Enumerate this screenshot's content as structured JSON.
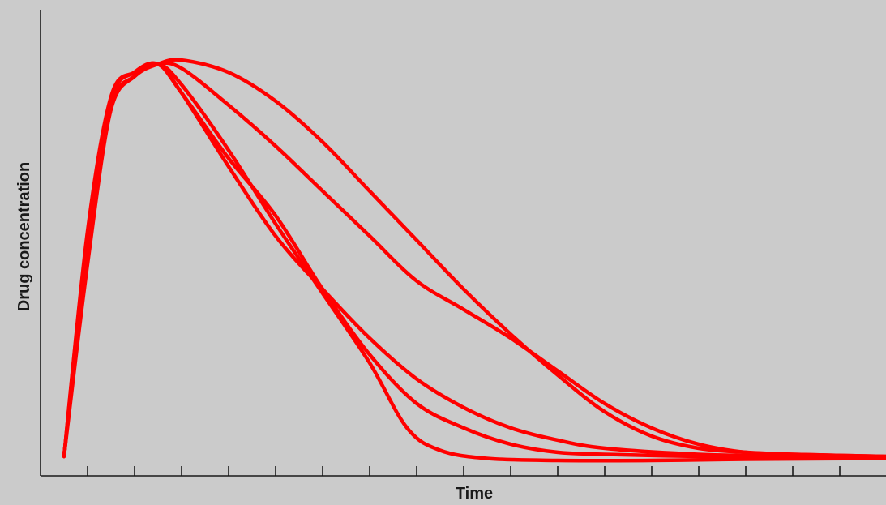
{
  "chart_data": {
    "type": "line",
    "title": "",
    "xlabel": "Time",
    "ylabel": "Drug concentration",
    "xlim": [
      0,
      18
    ],
    "ylim": [
      0,
      100
    ],
    "x_tick_count": 17,
    "grid": false,
    "legend": "none",
    "colors": {
      "background": "#cbcbcb",
      "axis": "#1a1a1a",
      "series": "#ff0000"
    },
    "series": [
      {
        "color": "#ff0000",
        "x": [
          0.5,
          1.0,
          1.5,
          2.0,
          2.5,
          3.0,
          4.0,
          5.0,
          6.0,
          7.0,
          7.8,
          8.5,
          9.5,
          11.0,
          13.0,
          15.0,
          18.0
        ],
        "y": [
          1,
          48,
          86,
          94,
          97,
          92,
          76,
          58,
          41,
          24,
          8,
          2.5,
          0.5,
          0,
          0,
          0.3,
          0.5
        ]
      },
      {
        "color": "#ff0000",
        "x": [
          0.5,
          1.0,
          1.5,
          2.0,
          2.5,
          3.0,
          4.0,
          5.0,
          6.0,
          7.0,
          8.0,
          9.0,
          10.0,
          11.0,
          12.0,
          14.0,
          16.0,
          18.0
        ],
        "y": [
          1,
          52,
          88,
          95,
          97,
          90,
          72,
          55,
          42,
          30,
          20,
          13,
          8,
          5,
          3,
          1.5,
          1,
          0.5
        ]
      },
      {
        "color": "#ff0000",
        "x": [
          0.5,
          1.0,
          1.5,
          2.0,
          2.5,
          3.0,
          4.0,
          5.0,
          6.0,
          7.0,
          8.0,
          9.0,
          10.0,
          11.0,
          12.0,
          14.0,
          16.0,
          18.0
        ],
        "y": [
          1,
          56,
          89,
          95,
          97,
          90,
          74,
          60,
          42,
          26,
          14,
          8,
          4,
          2,
          1.5,
          1,
          0.8,
          0.8
        ]
      },
      {
        "color": "#ff0000",
        "x": [
          0.5,
          1.0,
          1.5,
          2.0,
          2.5,
          3.0,
          4.0,
          5.0,
          6.0,
          7.0,
          8.0,
          9.0,
          10.0,
          11.0,
          12.0,
          13.0,
          14.0,
          15.0,
          16.0,
          18.0
        ],
        "y": [
          1,
          55,
          87,
          94,
          97,
          96,
          87,
          77,
          66,
          55,
          44,
          37,
          30,
          22,
          14,
          8,
          4,
          2,
          1.5,
          1
        ]
      },
      {
        "color": "#ff0000",
        "x": [
          0.5,
          1.0,
          1.5,
          2.0,
          2.5,
          3.0,
          4.0,
          5.0,
          6.0,
          7.0,
          8.0,
          9.0,
          10.0,
          11.0,
          12.0,
          13.0,
          14.0,
          15.0,
          16.0,
          18.0
        ],
        "y": [
          1,
          53,
          86,
          94,
          97,
          98,
          95,
          88,
          78,
          66,
          54,
          42,
          31,
          21,
          12,
          6,
          3,
          2,
          1.5,
          1
        ]
      }
    ]
  }
}
